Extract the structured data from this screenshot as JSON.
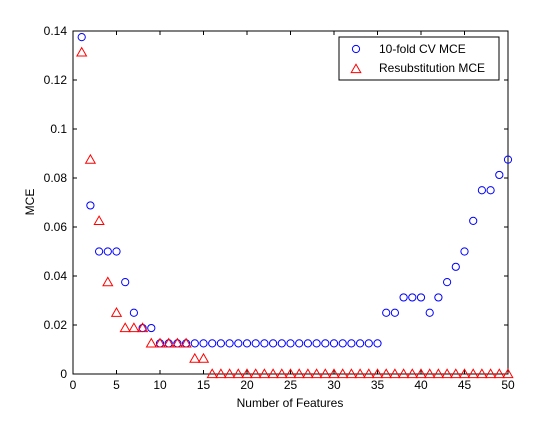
{
  "chart_data": {
    "type": "scatter",
    "title": "",
    "xlabel": "Number of Features",
    "ylabel": "MCE",
    "xlim": [
      0,
      50
    ],
    "ylim": [
      0,
      0.14
    ],
    "xticks": [
      0,
      5,
      10,
      15,
      20,
      25,
      30,
      35,
      40,
      45,
      50
    ],
    "yticks": [
      0,
      0.02,
      0.04,
      0.06,
      0.08,
      0.1,
      0.12,
      0.14
    ],
    "grid": false,
    "legend_position": "top-right",
    "x": [
      1,
      2,
      3,
      4,
      5,
      6,
      7,
      8,
      9,
      10,
      11,
      12,
      13,
      14,
      15,
      16,
      17,
      18,
      19,
      20,
      21,
      22,
      23,
      24,
      25,
      26,
      27,
      28,
      29,
      30,
      31,
      32,
      33,
      34,
      35,
      36,
      37,
      38,
      39,
      40,
      41,
      42,
      43,
      44,
      45,
      46,
      47,
      48,
      49,
      50
    ],
    "series": [
      {
        "name": "10-fold CV MCE",
        "marker": "circle",
        "color": "#0000ff",
        "values": [
          0.1375,
          0.0688,
          0.05,
          0.05,
          0.05,
          0.0375,
          0.025,
          0.01875,
          0.01875,
          0.0125,
          0.0125,
          0.0125,
          0.0125,
          0.0125,
          0.0125,
          0.0125,
          0.0125,
          0.0125,
          0.0125,
          0.0125,
          0.0125,
          0.0125,
          0.0125,
          0.0125,
          0.0125,
          0.0125,
          0.0125,
          0.0125,
          0.0125,
          0.0125,
          0.0125,
          0.0125,
          0.0125,
          0.0125,
          0.0125,
          0.025,
          0.025,
          0.03125,
          0.03125,
          0.03125,
          0.025,
          0.03125,
          0.0375,
          0.04375,
          0.05,
          0.0625,
          0.075,
          0.075,
          0.08125,
          0.0875
        ]
      },
      {
        "name": "Resubstitution MCE",
        "marker": "triangle",
        "color": "#ff0000",
        "values": [
          0.13125,
          0.0875,
          0.0625,
          0.0375,
          0.025,
          0.01875,
          0.01875,
          0.01875,
          0.0125,
          0.0125,
          0.0125,
          0.0125,
          0.0125,
          0.00625,
          0.00625,
          0,
          0,
          0,
          0,
          0,
          0,
          0,
          0,
          0,
          0,
          0,
          0,
          0,
          0,
          0,
          0,
          0,
          0,
          0,
          0,
          0,
          0,
          0,
          0,
          0,
          0,
          0,
          0,
          0,
          0,
          0,
          0,
          0,
          0,
          0
        ]
      }
    ]
  }
}
